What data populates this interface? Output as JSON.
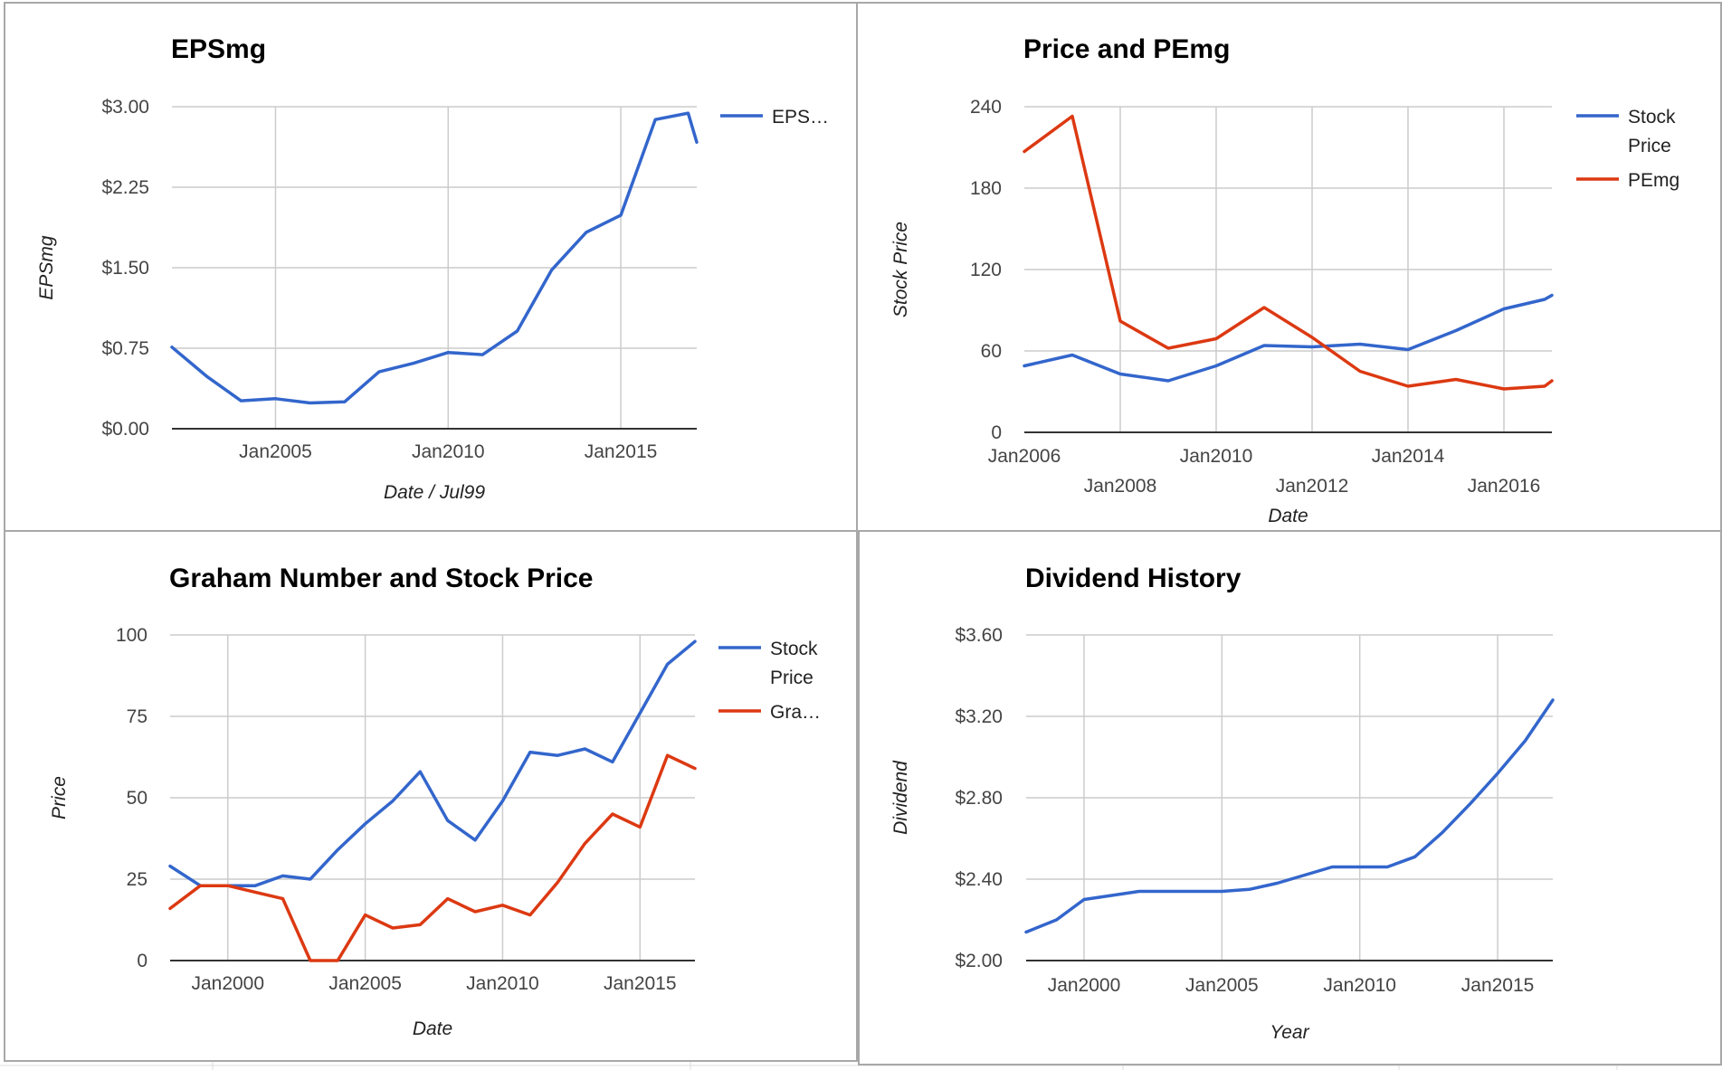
{
  "colors": {
    "blue": "#3366cc",
    "red": "#dc3912",
    "grid": "#cccccc",
    "baseline": "#333333"
  },
  "chart_data": [
    {
      "type": "line",
      "title": "EPSmg",
      "xlabel": "Date / Jul99",
      "ylabel": "EPSmg",
      "x_ticks": [
        "Jan2005",
        "Jan2010",
        "Jan2015"
      ],
      "y_ticks": [
        "$0.00",
        "$0.75",
        "$1.50",
        "$2.25",
        "$3.00"
      ],
      "ylim": [
        0,
        3
      ],
      "xlim": [
        2002.0,
        2017.2
      ],
      "grid": true,
      "legend_position": "right",
      "series": [
        {
          "name": "EPS…",
          "color": "#3366cc",
          "x": [
            2002.0,
            2003.0,
            2004.0,
            2005.0,
            2006.0,
            2007.0,
            2008.0,
            2009.0,
            2010.0,
            2011.0,
            2012.0,
            2013.0,
            2014.0,
            2015.0,
            2016.0,
            2016.95,
            2017.2
          ],
          "y": [
            0.76,
            0.49,
            0.26,
            0.28,
            0.24,
            0.25,
            0.53,
            0.61,
            0.71,
            0.69,
            0.91,
            1.48,
            1.83,
            1.99,
            2.88,
            2.94,
            2.67
          ]
        }
      ]
    },
    {
      "type": "line",
      "title": "Price and PEmg",
      "xlabel": "Date",
      "ylabel": "Stock Price",
      "x_ticks_row1": [
        "Jan2006",
        "Jan2010",
        "Jan2014"
      ],
      "x_ticks_row2": [
        "Jan2008",
        "Jan2012",
        "Jan2016"
      ],
      "y_ticks": [
        "0",
        "60",
        "120",
        "180",
        "240"
      ],
      "ylim": [
        0,
        240
      ],
      "xlim": [
        2006.0,
        2017.0
      ],
      "grid": true,
      "legend_position": "right",
      "series": [
        {
          "name": "Stock Price",
          "legend_lines": [
            "Stock",
            "Price"
          ],
          "color": "#3366cc",
          "x": [
            2006.0,
            2007.0,
            2008.0,
            2009.0,
            2010.0,
            2011.0,
            2012.0,
            2013.0,
            2014.0,
            2015.0,
            2016.0,
            2016.85,
            2017.0
          ],
          "y": [
            49,
            57,
            43,
            38,
            49,
            64,
            63,
            65,
            61,
            75,
            91,
            98,
            101
          ]
        },
        {
          "name": "PEmg",
          "legend_lines": [
            "PEmg"
          ],
          "color": "#dc3912",
          "x": [
            2006.0,
            2007.0,
            2008.0,
            2009.0,
            2010.0,
            2011.0,
            2012.0,
            2013.0,
            2014.0,
            2015.0,
            2016.0,
            2016.85,
            2017.0
          ],
          "y": [
            207,
            233,
            82,
            62,
            69,
            92,
            70,
            45,
            34,
            39,
            32,
            34,
            38
          ]
        }
      ]
    },
    {
      "type": "line",
      "title": "Graham Number and Stock Price",
      "xlabel": "Date",
      "ylabel": "Price",
      "x_ticks": [
        "Jan2000",
        "Jan2005",
        "Jan2010",
        "Jan2015"
      ],
      "y_ticks": [
        "0",
        "25",
        "50",
        "75",
        "100"
      ],
      "ylim": [
        0,
        100
      ],
      "xlim": [
        1997.9,
        2017.0
      ],
      "grid": true,
      "legend_position": "right",
      "series": [
        {
          "name": "Stock Price",
          "legend_lines": [
            "Stock",
            "Price"
          ],
          "color": "#3366cc",
          "x": [
            1997.9,
            1999.0,
            2000.0,
            2001.0,
            2002.0,
            2003.0,
            2004.0,
            2005.0,
            2006.0,
            2007.0,
            2008.0,
            2009.0,
            2010.0,
            2011.0,
            2012.0,
            2013.0,
            2014.0,
            2015.0,
            2016.0,
            2017.0
          ],
          "y": [
            29,
            23,
            23,
            23,
            26,
            25,
            34,
            42,
            49,
            58,
            43,
            37,
            49,
            64,
            63,
            65,
            61,
            76,
            91,
            98
          ]
        },
        {
          "name": "Gra…",
          "legend_lines": [
            "Gra…"
          ],
          "color": "#dc3912",
          "x": [
            1997.9,
            1999.0,
            2000.0,
            2001.0,
            2002.0,
            2003.0,
            2004.0,
            2005.0,
            2006.0,
            2007.0,
            2008.0,
            2009.0,
            2010.0,
            2011.0,
            2012.0,
            2013.0,
            2014.0,
            2015.0,
            2016.0,
            2017.0
          ],
          "y": [
            16,
            23,
            23,
            21,
            19,
            0,
            0,
            14,
            10,
            11,
            19,
            15,
            17,
            14,
            24,
            36,
            45,
            41,
            63,
            59
          ]
        }
      ]
    },
    {
      "type": "line",
      "title": "Dividend History",
      "xlabel": "Year",
      "ylabel": "Dividend",
      "x_ticks": [
        "Jan2000",
        "Jan2005",
        "Jan2010",
        "Jan2015"
      ],
      "y_ticks": [
        "$2.00",
        "$2.40",
        "$2.80",
        "$3.20",
        "$3.60"
      ],
      "ylim": [
        2.0,
        3.6
      ],
      "xlim": [
        1997.9,
        2017.0
      ],
      "grid": true,
      "legend_position": "none",
      "series": [
        {
          "name": "",
          "color": "#3366cc",
          "x": [
            1997.9,
            1999.0,
            2000.0,
            2001.0,
            2002.0,
            2003.0,
            2004.0,
            2005.0,
            2006.0,
            2007.0,
            2008.0,
            2009.0,
            2010.0,
            2011.0,
            2012.0,
            2013.0,
            2014.0,
            2015.0,
            2016.0,
            2017.0
          ],
          "y": [
            2.14,
            2.2,
            2.3,
            2.32,
            2.34,
            2.34,
            2.34,
            2.34,
            2.35,
            2.38,
            2.42,
            2.46,
            2.46,
            2.46,
            2.51,
            2.63,
            2.77,
            2.92,
            3.08,
            3.28
          ]
        }
      ]
    }
  ]
}
